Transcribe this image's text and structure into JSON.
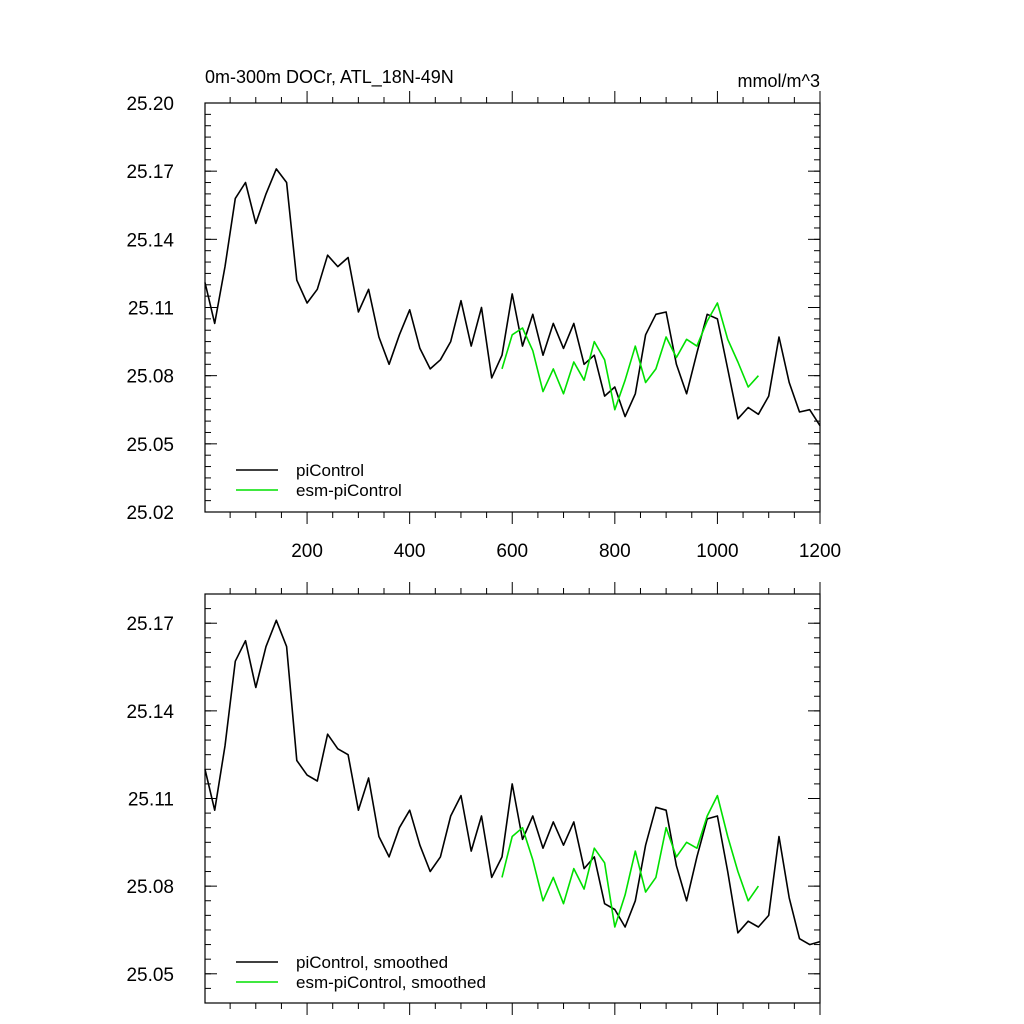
{
  "chart_data": [
    {
      "type": "line",
      "title": "0m-300m DOCr, ATL_18N-49N",
      "units": "mmol/m^3",
      "xlim": [
        1,
        1200
      ],
      "ylim": [
        25.02,
        25.2
      ],
      "x_ticks": [
        200,
        400,
        600,
        800,
        1000,
        1200
      ],
      "y_ticks": [
        25.02,
        25.05,
        25.08,
        25.11,
        25.14,
        25.17,
        25.2
      ],
      "y_tick_labels": [
        "25.02",
        "25.05",
        "25.08",
        "25.11",
        "25.14",
        "25.17",
        "25.20"
      ],
      "legend": "bottom-left",
      "series": [
        {
          "name": "piControl",
          "color": "#000000",
          "x": [
            1,
            20,
            40,
            60,
            80,
            100,
            120,
            140,
            160,
            180,
            200,
            220,
            240,
            260,
            280,
            300,
            320,
            340,
            360,
            380,
            400,
            420,
            440,
            460,
            480,
            500,
            520,
            540,
            560,
            580,
            600,
            620,
            640,
            660,
            680,
            700,
            720,
            740,
            760,
            780,
            800,
            820,
            840,
            860,
            880,
            900,
            920,
            940,
            960,
            980,
            1000,
            1020,
            1040,
            1060,
            1080,
            1100,
            1120,
            1140,
            1160,
            1180,
            1200
          ],
          "y": [
            25.121,
            25.103,
            25.128,
            25.158,
            25.165,
            25.147,
            25.16,
            25.171,
            25.165,
            25.122,
            25.112,
            25.118,
            25.133,
            25.128,
            25.132,
            25.108,
            25.118,
            25.097,
            25.085,
            25.098,
            25.109,
            25.092,
            25.083,
            25.087,
            25.095,
            25.113,
            25.093,
            25.11,
            25.079,
            25.089,
            25.116,
            25.093,
            25.107,
            25.089,
            25.103,
            25.092,
            25.103,
            25.085,
            25.089,
            25.071,
            25.075,
            25.062,
            25.072,
            25.098,
            25.107,
            25.108,
            25.085,
            25.072,
            25.09,
            25.107,
            25.105,
            25.083,
            25.061,
            25.066,
            25.063,
            25.071,
            25.097,
            25.077,
            25.064,
            25.065,
            25.058
          ]
        },
        {
          "name": "esm-piControl",
          "color": "#00e000",
          "x": [
            580,
            600,
            620,
            640,
            660,
            680,
            700,
            720,
            740,
            760,
            780,
            800,
            820,
            840,
            860,
            880,
            900,
            920,
            940,
            960,
            980,
            1000,
            1020,
            1040,
            1060,
            1080
          ],
          "y": [
            25.083,
            25.098,
            25.101,
            25.091,
            25.073,
            25.083,
            25.072,
            25.086,
            25.078,
            25.095,
            25.087,
            25.065,
            25.078,
            25.093,
            25.077,
            25.083,
            25.097,
            25.088,
            25.096,
            25.093,
            25.104,
            25.112,
            25.096,
            25.086,
            25.075,
            25.08
          ]
        }
      ]
    },
    {
      "type": "line",
      "xlim": [
        1,
        1200
      ],
      "ylim": [
        25.04,
        25.18
      ],
      "x_ticks": [
        200,
        400,
        600,
        800,
        1000,
        1200
      ],
      "y_ticks": [
        25.05,
        25.08,
        25.11,
        25.14,
        25.17
      ],
      "y_tick_labels": [
        "25.05",
        "25.08",
        "25.11",
        "25.14",
        "25.17"
      ],
      "legend": "bottom-left",
      "series": [
        {
          "name": "piControl, smoothed",
          "color": "#000000",
          "x": [
            1,
            20,
            40,
            60,
            80,
            100,
            120,
            140,
            160,
            180,
            200,
            220,
            240,
            260,
            280,
            300,
            320,
            340,
            360,
            380,
            400,
            420,
            440,
            460,
            480,
            500,
            520,
            540,
            560,
            580,
            600,
            620,
            640,
            660,
            680,
            700,
            720,
            740,
            760,
            780,
            800,
            820,
            840,
            860,
            880,
            900,
            920,
            940,
            960,
            980,
            1000,
            1020,
            1040,
            1060,
            1080,
            1100,
            1120,
            1140,
            1160,
            1180,
            1200
          ],
          "y": [
            25.12,
            25.106,
            25.128,
            25.157,
            25.164,
            25.148,
            25.162,
            25.171,
            25.162,
            25.123,
            25.118,
            25.116,
            25.132,
            25.127,
            25.125,
            25.106,
            25.117,
            25.097,
            25.09,
            25.1,
            25.106,
            25.094,
            25.085,
            25.09,
            25.104,
            25.111,
            25.092,
            25.104,
            25.083,
            25.09,
            25.115,
            25.096,
            25.104,
            25.093,
            25.102,
            25.094,
            25.102,
            25.086,
            25.09,
            25.074,
            25.072,
            25.066,
            25.075,
            25.094,
            25.107,
            25.106,
            25.087,
            25.075,
            25.09,
            25.103,
            25.104,
            25.085,
            25.064,
            25.068,
            25.066,
            25.07,
            25.097,
            25.076,
            25.062,
            25.06,
            25.061
          ]
        },
        {
          "name": "esm-piControl, smoothed",
          "color": "#00e000",
          "x": [
            580,
            600,
            620,
            640,
            660,
            680,
            700,
            720,
            740,
            760,
            780,
            800,
            820,
            840,
            860,
            880,
            900,
            920,
            940,
            960,
            980,
            1000,
            1020,
            1040,
            1060,
            1080
          ],
          "y": [
            25.083,
            25.097,
            25.1,
            25.089,
            25.075,
            25.083,
            25.074,
            25.086,
            25.079,
            25.093,
            25.088,
            25.066,
            25.077,
            25.092,
            25.078,
            25.083,
            25.1,
            25.09,
            25.095,
            25.093,
            25.104,
            25.111,
            25.097,
            25.085,
            25.075,
            25.08
          ]
        }
      ]
    }
  ]
}
